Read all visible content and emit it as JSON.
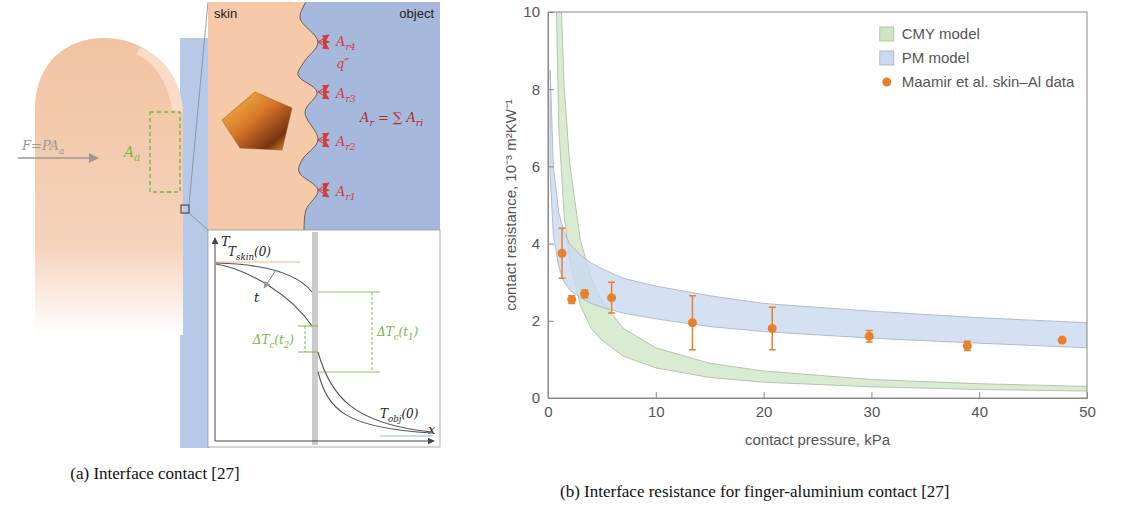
{
  "chart_data": {
    "type": "scatter",
    "xlabel": "contact pressure, kPa",
    "ylabel": "contact resistance, 10⁻³ m²KW⁻¹",
    "xlim": [
      0,
      50
    ],
    "ylim": [
      0,
      10
    ],
    "xticks": [
      0,
      10,
      20,
      30,
      40,
      50
    ],
    "yticks": [
      0,
      2,
      4,
      6,
      8,
      10
    ],
    "legend": "upper right",
    "series": [
      {
        "name": "CMY model",
        "type": "band",
        "color": "#cfe6c4",
        "x": [
          0.2,
          0.5,
          1,
          1.5,
          2,
          3,
          4,
          5,
          7,
          10,
          15,
          20,
          30,
          40,
          50
        ],
        "lower": [
          35,
          14,
          7,
          4.7,
          3.6,
          2.4,
          1.8,
          1.5,
          1.08,
          0.78,
          0.53,
          0.41,
          0.29,
          0.22,
          0.18
        ],
        "upper": [
          60,
          24,
          12,
          8.1,
          6.1,
          4.1,
          3.1,
          2.5,
          1.8,
          1.3,
          0.9,
          0.7,
          0.48,
          0.37,
          0.3
        ]
      },
      {
        "name": "PM model",
        "type": "band",
        "color": "#c9daf0",
        "x": [
          0.2,
          0.5,
          1,
          1.5,
          2,
          3,
          4,
          5,
          7,
          10,
          15,
          20,
          30,
          40,
          50
        ],
        "lower": [
          5.8,
          4.2,
          3.4,
          3.0,
          2.8,
          2.6,
          2.45,
          2.35,
          2.2,
          2.05,
          1.85,
          1.72,
          1.55,
          1.42,
          1.3
        ],
        "upper": [
          8.5,
          6.0,
          4.8,
          4.3,
          4.0,
          3.7,
          3.5,
          3.35,
          3.1,
          2.9,
          2.65,
          2.45,
          2.25,
          2.08,
          1.95
        ]
      },
      {
        "name": "Maamir et al. skin–Al data",
        "type": "scatter",
        "color": "#e8802c",
        "marker": "circle",
        "x": [
          1.3,
          2.2,
          3.4,
          5.9,
          13.4,
          20.8,
          29.8,
          38.9,
          47.7
        ],
        "values": [
          3.75,
          2.55,
          2.7,
          2.6,
          1.95,
          1.8,
          1.6,
          1.35,
          1.5
        ],
        "errors": [
          0.65,
          0.1,
          0.1,
          0.4,
          0.7,
          0.55,
          0.15,
          0.12,
          0.03
        ]
      }
    ]
  },
  "diagram": {
    "force_label": [
      {
        "t": "F=PA"
      },
      {
        "sub": "a"
      }
    ],
    "apparent_area_label": [
      {
        "t": "A"
      },
      {
        "sub": "a"
      }
    ],
    "zoom_skin_label": "skin",
    "zoom_object_label": "object",
    "contact_labels": [
      [
        {
          "t": "A"
        },
        {
          "sub": "r4"
        }
      ],
      [
        {
          "t": "A"
        },
        {
          "sub": "r3"
        }
      ],
      [
        {
          "t": "A"
        },
        {
          "sub": "r2"
        }
      ],
      [
        {
          "t": "A"
        },
        {
          "sub": "r1"
        }
      ]
    ],
    "flux_label": "q″",
    "real_area_label": [
      {
        "t": "A"
      },
      {
        "sub": "r"
      },
      {
        "t": " = ∑ A"
      },
      {
        "sub": "ri"
      }
    ],
    "temperature_axis": "T",
    "position_axis": "x",
    "time_label": "t",
    "skin_initial": [
      {
        "t": "T"
      },
      {
        "sub": "skin"
      },
      {
        "t": "(0)"
      }
    ],
    "object_initial": [
      {
        "t": "T"
      },
      {
        "sub": "obj"
      },
      {
        "t": "(0)"
      }
    ],
    "drop_t2": [
      {
        "t": "ΔT"
      },
      {
        "sub": "c"
      },
      {
        "t": "(t"
      },
      {
        "sub": "2"
      },
      {
        "t": ")"
      }
    ],
    "drop_t1": [
      {
        "t": "ΔT"
      },
      {
        "sub": "c"
      },
      {
        "t": "(t"
      },
      {
        "sub": "1"
      },
      {
        "t": ")"
      }
    ]
  },
  "captions": [
    "(a) Interface contact [27]",
    "(b) Interface resistance for finger-aluminium contact [27]"
  ]
}
